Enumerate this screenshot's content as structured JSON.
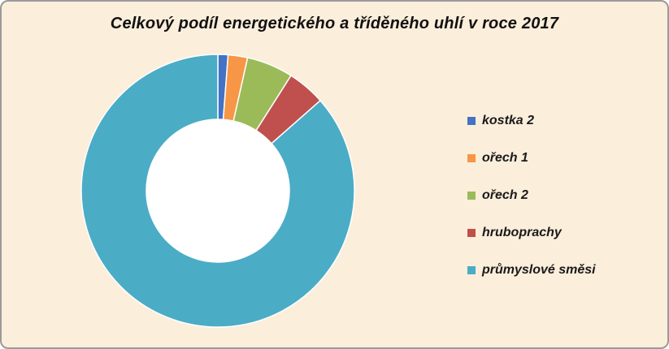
{
  "chart_data": {
    "type": "pie",
    "variant": "donut",
    "title": "Celkový podíl energetického a tříděného uhlí v roce 2017",
    "categories": [
      "kostka 2",
      "ořech 1",
      "ořech 2",
      "hruboprachy",
      "průmyslové směsi"
    ],
    "values": [
      1.2,
      2.3,
      5.5,
      4.5,
      86.5
    ],
    "colors": [
      "#4472c4",
      "#f79646",
      "#9bbb59",
      "#c0504d",
      "#4bacc6"
    ],
    "legend": {
      "position": "right"
    }
  },
  "legend_items": [
    {
      "label": "kostka 2"
    },
    {
      "label": "ořech 1"
    },
    {
      "label": "ořech 2"
    },
    {
      "label": "hruboprachy"
    },
    {
      "label": "průmyslové směsi"
    }
  ]
}
